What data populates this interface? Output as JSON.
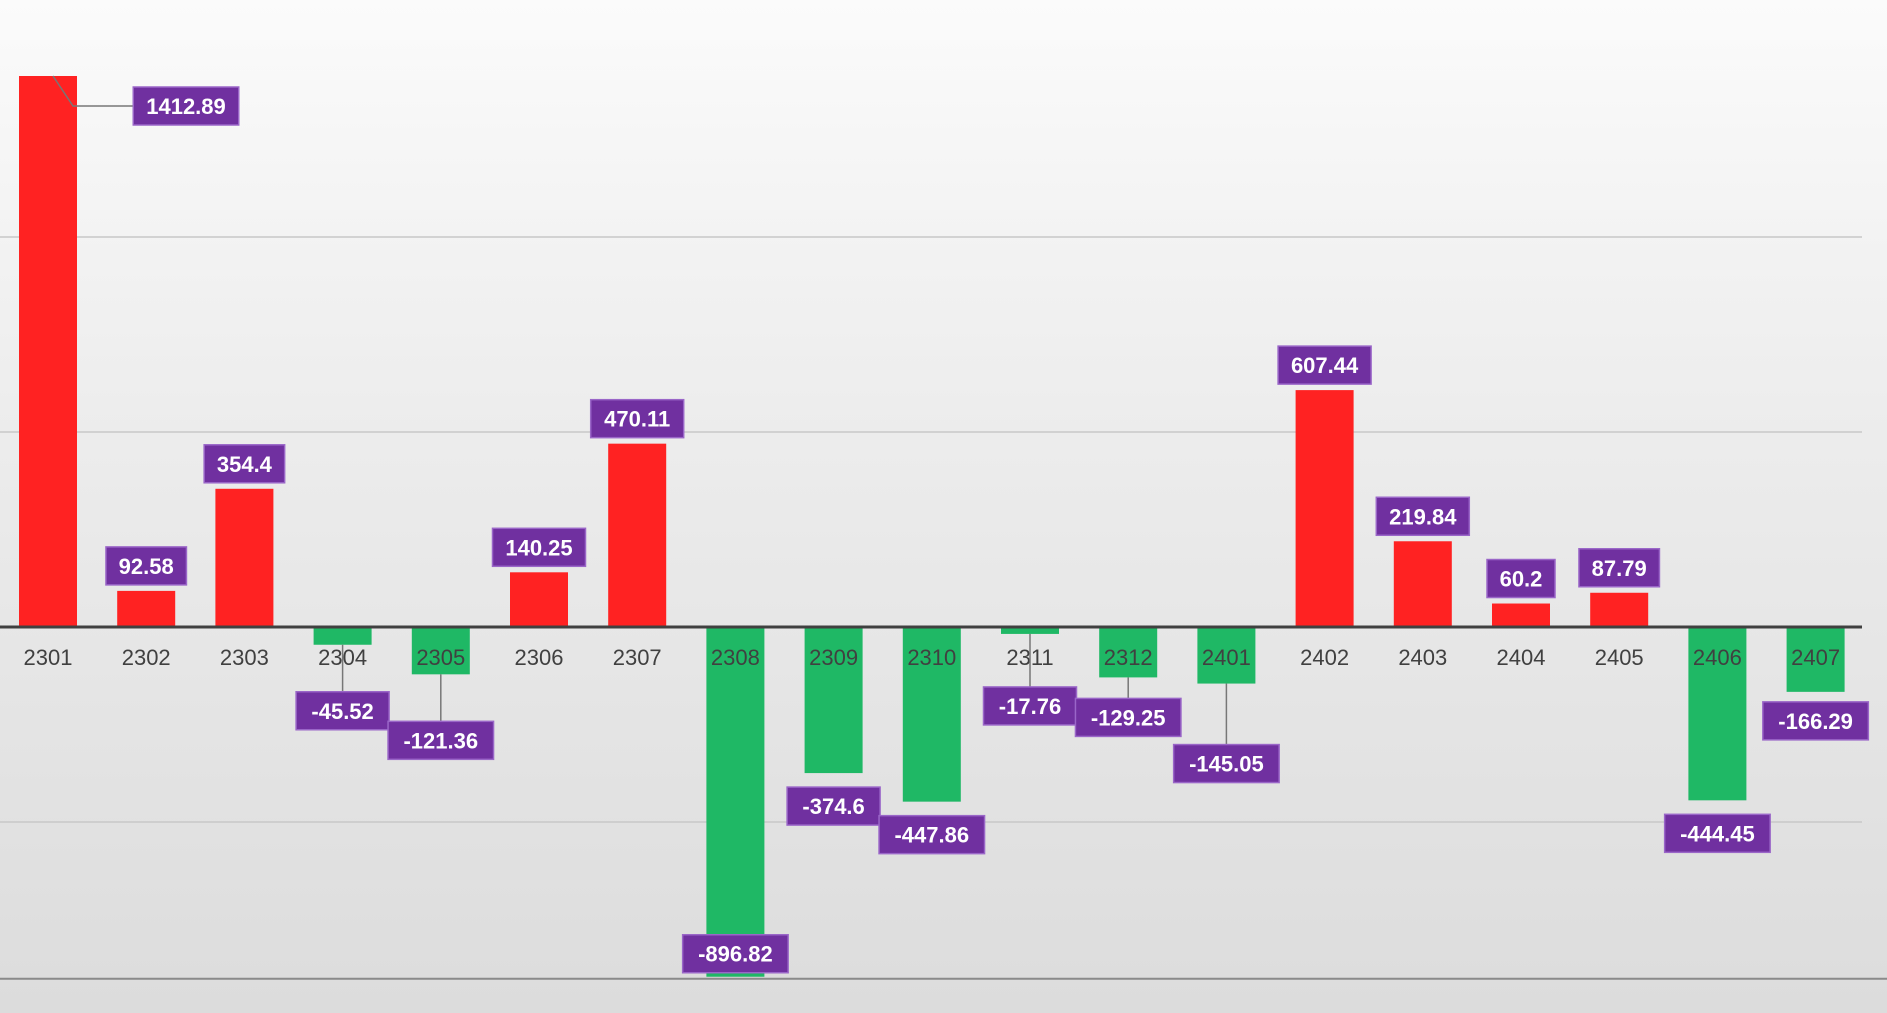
{
  "chart_data": {
    "type": "bar",
    "categories": [
      "2301",
      "2302",
      "2303",
      "2304",
      "2305",
      "2306",
      "2307",
      "2308",
      "2309",
      "2310",
      "2311",
      "2312",
      "2401",
      "2402",
      "2403",
      "2404",
      "2405",
      "2406",
      "2407"
    ],
    "values": [
      1412.89,
      92.58,
      354.4,
      -45.52,
      -121.36,
      140.25,
      470.11,
      -896.82,
      -374.6,
      -447.86,
      -17.76,
      -129.25,
      -145.05,
      607.44,
      219.84,
      60.2,
      87.79,
      -444.45,
      -166.29
    ],
    "data_labels": [
      "1412.89",
      "92.58",
      "354.4",
      "-45.52",
      "-121.36",
      "140.25",
      "470.11",
      "-896.82",
      "-374.6",
      "-447.86",
      "-17.76",
      "-129.25",
      "-145.05",
      "607.44",
      "219.84",
      "60.2",
      "87.79",
      "-444.45",
      "-166.29"
    ],
    "title": "",
    "xlabel": "",
    "ylabel": "",
    "ylim": [
      -900,
      1500
    ],
    "grid": true,
    "legend": "none",
    "colors": {
      "positive": "#ff2222",
      "negative": "#1fb865",
      "label_bg": "#7030a0",
      "label_border": "#9a66c8",
      "axis": "#404040",
      "grid": "#c8c8c8"
    }
  }
}
